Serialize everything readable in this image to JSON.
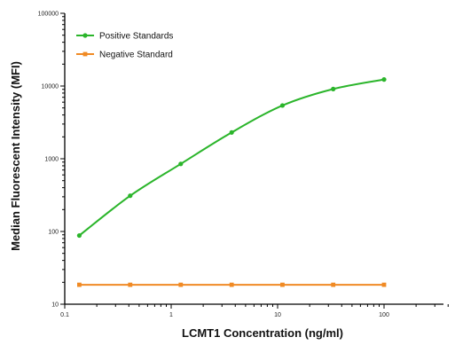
{
  "chart_data": {
    "type": "line",
    "xlabel": "LCMT1 Concentration (ng/ml)",
    "ylabel": "Median  Fluorescent  Intensity  (MFI)",
    "x_scale": "log",
    "y_scale": "log",
    "xlim": [
      0.1,
      500
    ],
    "ylim": [
      10,
      100000
    ],
    "x_ticks": [
      {
        "value": 0.1,
        "label": "0.1"
      },
      {
        "value": 1,
        "label": "1"
      },
      {
        "value": 10,
        "label": "10"
      },
      {
        "value": 100,
        "label": "100"
      }
    ],
    "y_ticks": [
      {
        "value": 10,
        "label": "10"
      },
      {
        "value": 100,
        "label": "100"
      },
      {
        "value": 1000,
        "label": "1000"
      },
      {
        "value": 10000,
        "label": "10000"
      },
      {
        "value": 100000,
        "label": "100000"
      }
    ],
    "legend_position": "top-left",
    "grid": false,
    "series": [
      {
        "name": "Positive Standards",
        "color": "#2bb52b",
        "x": [
          0.137,
          0.412,
          1.23,
          3.7,
          11.1,
          33.3,
          100
        ],
        "y": [
          88,
          310,
          850,
          2300,
          5400,
          9100,
          12300
        ]
      },
      {
        "name": "Negative Standard",
        "color": "#f08a24",
        "x": [
          0.137,
          0.412,
          1.23,
          3.7,
          11.1,
          33.3,
          100
        ],
        "y": [
          18.5,
          18.5,
          18.5,
          18.5,
          18.5,
          18.5,
          18.5
        ]
      }
    ]
  }
}
